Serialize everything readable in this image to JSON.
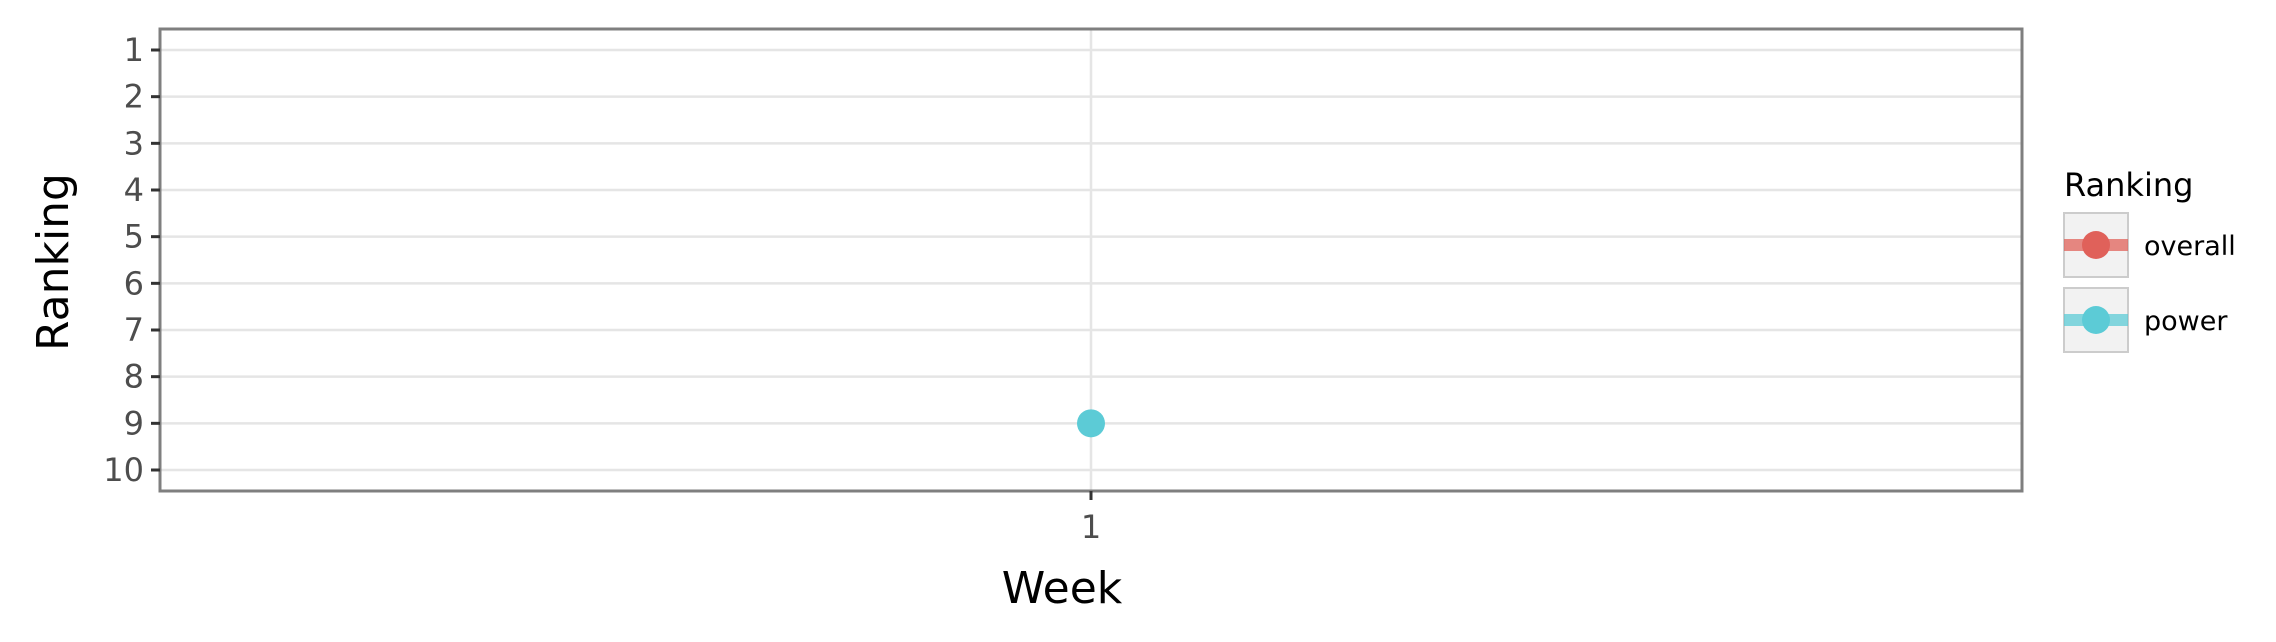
{
  "chart_data": {
    "type": "line",
    "xlabel": "Week",
    "ylabel": "Ranking",
    "x_ticks": [
      "1"
    ],
    "y_ticks": [
      "1",
      "2",
      "3",
      "4",
      "5",
      "6",
      "7",
      "8",
      "9",
      "10"
    ],
    "ylim": [
      1,
      10
    ],
    "y_reversed": true,
    "grid": true,
    "legend": {
      "title": "Ranking",
      "placement": "right",
      "entries": [
        "overall",
        "power"
      ]
    },
    "series": [
      {
        "name": "overall",
        "color": "#e0615a",
        "x": [],
        "y": []
      },
      {
        "name": "power",
        "color": "#5ccbd6",
        "x": [
          "1"
        ],
        "y": [
          9
        ]
      }
    ]
  }
}
